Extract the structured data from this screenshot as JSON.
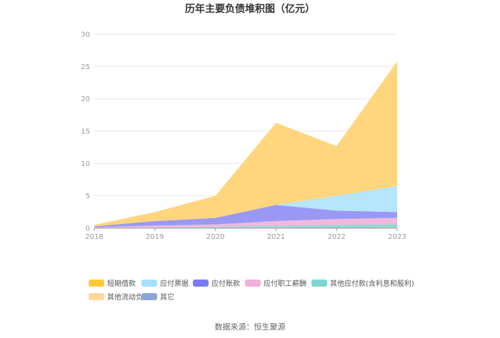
{
  "chart_data": {
    "type": "area",
    "stacked": true,
    "title": "历年主要负债堆积图（亿元）",
    "x": [
      "2018",
      "2019",
      "2020",
      "2021",
      "2022",
      "2023"
    ],
    "ylim": [
      0,
      30
    ],
    "yticks": [
      "0",
      "5",
      "10",
      "15",
      "20",
      "25",
      "30"
    ],
    "grid": true,
    "legend_position": "bottom",
    "series": [
      {
        "name": "其它",
        "color": "#8fa8d8",
        "values": [
          0.02,
          0.05,
          0.08,
          0.1,
          0.12,
          0.1
        ]
      },
      {
        "name": "其他流动负债",
        "color": "#ffd9a0",
        "values": [
          0.0,
          0.0,
          0.0,
          0.05,
          0.05,
          0.05
        ]
      },
      {
        "name": "其他应付款(含利息和股利)",
        "color": "#88dad8",
        "values": [
          0.02,
          0.05,
          0.1,
          0.25,
          0.35,
          0.45
        ]
      },
      {
        "name": "应付职工薪酬",
        "color": "#f0b8dc",
        "values": [
          0.1,
          0.3,
          0.4,
          0.7,
          0.9,
          1.0
        ]
      },
      {
        "name": "应付账款",
        "color": "#9999f5",
        "values": [
          0.15,
          0.7,
          1.0,
          2.5,
          1.3,
          0.9
        ]
      },
      {
        "name": "应付票据",
        "color": "#b5e6fb",
        "values": [
          0.0,
          0.0,
          0.0,
          0.0,
          2.3,
          4.0
        ]
      },
      {
        "name": "短期借款",
        "color": "#ffd57e",
        "values": [
          0.21,
          1.4,
          3.42,
          12.7,
          7.68,
          19.3
        ]
      }
    ],
    "legend_items": [
      {
        "name": "短期借款",
        "color": "#ffc83d"
      },
      {
        "name": "应付票据",
        "color": "#a8e0fa"
      },
      {
        "name": "应付账款",
        "color": "#7b7bf0"
      },
      {
        "name": "应付职工薪酬",
        "color": "#f0b0d8"
      },
      {
        "name": "其他应付款(含利息和股利)",
        "color": "#7ed6d2"
      },
      {
        "name": "其他流动负债",
        "color": "#ffd99a"
      },
      {
        "name": "其它",
        "color": "#8ba6d6"
      }
    ]
  },
  "source_text": "数据来源：恒生聚源"
}
